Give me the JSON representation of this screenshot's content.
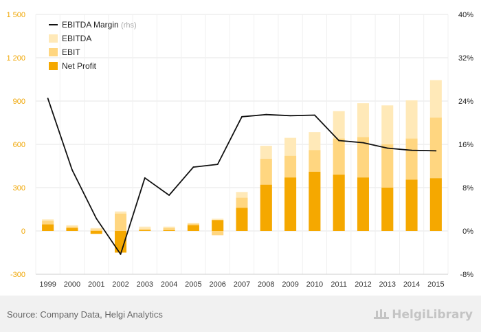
{
  "chart_data": {
    "type": "bar",
    "categories": [
      "1999",
      "2000",
      "2001",
      "2002",
      "2003",
      "2004",
      "2005",
      "2006",
      "2007",
      "2008",
      "2009",
      "2010",
      "2011",
      "2012",
      "2013",
      "2014",
      "2015"
    ],
    "series": [
      {
        "name": "EBITDA",
        "kind": "bar",
        "axis": "left",
        "color": "#ffe9b8",
        "values": [
          80,
          40,
          20,
          135,
          30,
          30,
          55,
          85,
          270,
          590,
          645,
          685,
          830,
          885,
          870,
          905,
          1045
        ]
      },
      {
        "name": "EBIT",
        "kind": "bar",
        "axis": "left",
        "color": "#ffd680",
        "values": [
          70,
          30,
          10,
          120,
          15,
          20,
          50,
          -30,
          230,
          500,
          520,
          560,
          640,
          650,
          600,
          640,
          785
        ]
      },
      {
        "name": "Net Profit",
        "kind": "bar",
        "axis": "left",
        "color": "#f5a800",
        "values": [
          45,
          20,
          -20,
          -150,
          5,
          5,
          40,
          75,
          160,
          320,
          370,
          410,
          390,
          370,
          300,
          355,
          365
        ]
      },
      {
        "name": "EBITDA Margin",
        "name_suffix": "(rhs)",
        "kind": "line",
        "axis": "right",
        "color": "#111111",
        "values": [
          24.5,
          11.3,
          2.3,
          -4.3,
          9.8,
          6.6,
          11.8,
          12.3,
          21.1,
          21.5,
          21.3,
          21.4,
          16.7,
          16.3,
          15.3,
          14.9,
          14.8
        ]
      }
    ],
    "y_left": {
      "ylim": [
        -300,
        1500
      ],
      "ticks": [
        -300,
        0,
        300,
        600,
        900,
        1200,
        1500
      ],
      "tick_labels": [
        "-300",
        "0",
        "300",
        "600",
        "900",
        "1 200",
        "1 500"
      ],
      "color": "#f0a500"
    },
    "y_right": {
      "ylim": [
        -8,
        40
      ],
      "ticks": [
        -8,
        0,
        8,
        16,
        24,
        32,
        40
      ],
      "tick_labels": [
        "-8%",
        "0%",
        "8%",
        "16%",
        "24%",
        "32%",
        "40%"
      ]
    },
    "grid": true,
    "legend": "top-left",
    "title": "",
    "xlabel": "",
    "ylabel": ""
  },
  "footer": {
    "source": "Source: Company Data, Helgi Analytics",
    "brand": "HelgiLibrary"
  }
}
